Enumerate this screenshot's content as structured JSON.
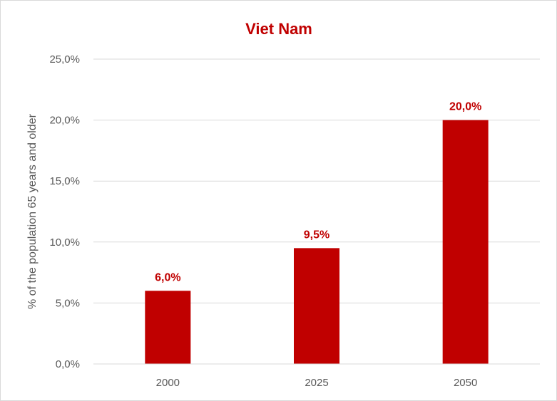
{
  "chart_data": {
    "type": "bar",
    "title": "Viet Nam",
    "xlabel": "",
    "ylabel": "% of the population 65 years and older",
    "categories": [
      "2000",
      "2025",
      "2050"
    ],
    "values": [
      6.0,
      9.5,
      20.0
    ],
    "data_labels": [
      "6,0%",
      "9,5%",
      "20,0%"
    ],
    "ylim": [
      0,
      25
    ],
    "yticks": [
      0,
      5,
      10,
      15,
      20,
      25
    ],
    "ytick_labels": [
      "0,0%",
      "5,0%",
      "10,0%",
      "15,0%",
      "20,0%",
      "25,0%"
    ],
    "grid": true,
    "legend": "none"
  },
  "colors": {
    "bar": "#c00000",
    "title": "#c00000",
    "data_label": "#c00000",
    "gridline": "#d9d9d9",
    "axis_text": "#595959"
  }
}
